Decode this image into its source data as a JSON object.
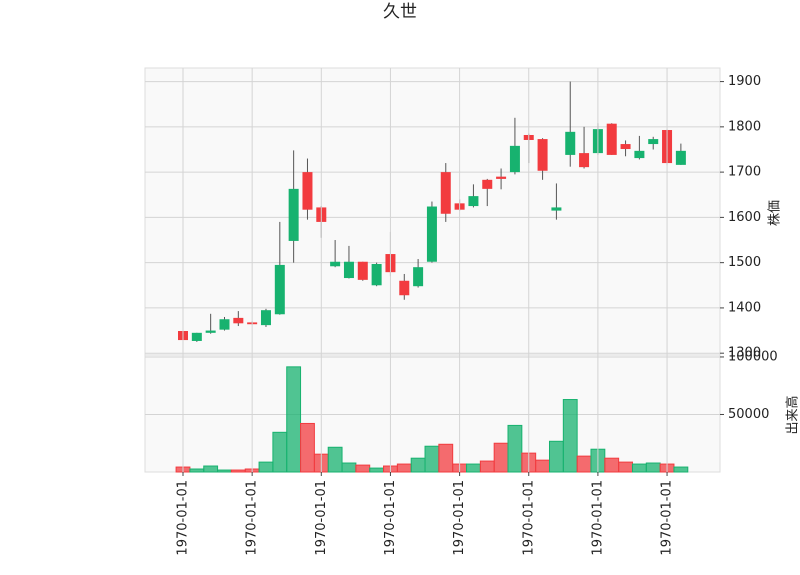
{
  "chart_data": [
    {
      "type": "candlestick",
      "title": "久世",
      "ylabel": "株価",
      "open": [
        1349,
        1327,
        1345,
        1352,
        1378,
        1368,
        1362,
        1386,
        1548,
        1700,
        1622,
        1492,
        1466,
        1502,
        1450,
        1519,
        1460,
        1448,
        1502,
        1700,
        1631,
        1625,
        1683,
        1690,
        1700,
        1782,
        1773,
        1615,
        1738,
        1742,
        1742,
        1807,
        1762,
        1731,
        1762,
        1793,
        1716
      ],
      "high": [
        1350,
        1345,
        1387,
        1380,
        1393,
        1370,
        1398,
        1590,
        1748,
        1730,
        1625,
        1550,
        1537,
        1502,
        1500,
        1568,
        1475,
        1508,
        1635,
        1720,
        1640,
        1673,
        1685,
        1708,
        1820,
        1785,
        1775,
        1675,
        1900,
        1800,
        1808,
        1808,
        1770,
        1780,
        1778,
        1795,
        1763
      ],
      "low": [
        1329,
        1325,
        1343,
        1350,
        1360,
        1363,
        1358,
        1385,
        1500,
        1595,
        1555,
        1490,
        1465,
        1460,
        1448,
        1470,
        1418,
        1445,
        1500,
        1590,
        1615,
        1622,
        1625,
        1662,
        1695,
        1720,
        1683,
        1595,
        1712,
        1708,
        1738,
        1738,
        1735,
        1728,
        1750,
        1715,
        1716
      ],
      "close": [
        1329,
        1345,
        1350,
        1375,
        1366,
        1364,
        1395,
        1495,
        1663,
        1617,
        1590,
        1502,
        1502,
        1462,
        1497,
        1479,
        1428,
        1490,
        1624,
        1608,
        1617,
        1647,
        1663,
        1685,
        1758,
        1771,
        1703,
        1622,
        1789,
        1711,
        1795,
        1738,
        1751,
        1747,
        1773,
        1720,
        1747
      ],
      "up_color": "#17b26f",
      "down_color": "#f23b3f",
      "ylim": [
        1296,
        1930
      ],
      "yticks": [
        1300,
        1400,
        1500,
        1600,
        1700,
        1800,
        1900
      ],
      "grid": true
    },
    {
      "type": "bar",
      "ylabel": "出来高",
      "categories": [
        "1970-01-01",
        null,
        null,
        null,
        null,
        "1970-01-01",
        null,
        null,
        null,
        null,
        "1970-01-01",
        null,
        null,
        null,
        null,
        "1970-01-01",
        null,
        null,
        null,
        null,
        "1970-01-01",
        null,
        null,
        null,
        null,
        "1970-01-01",
        null,
        null,
        null,
        null,
        "1970-01-01",
        null,
        null,
        null,
        null,
        "1970-01-01",
        null
      ],
      "values": [
        4300,
        2600,
        5200,
        1700,
        1700,
        2600,
        8600,
        34500,
        91400,
        42200,
        15500,
        21500,
        7800,
        6000,
        3400,
        5200,
        6900,
        12000,
        22400,
        24100,
        6900,
        6900,
        9500,
        25000,
        40500,
        16400,
        10300,
        26700,
        63000,
        13800,
        19800,
        12000,
        8600,
        6900,
        7800,
        6900,
        4300
      ],
      "ylim": [
        0,
        101700
      ],
      "yticks": [
        50000,
        100000
      ],
      "grid": true
    }
  ]
}
